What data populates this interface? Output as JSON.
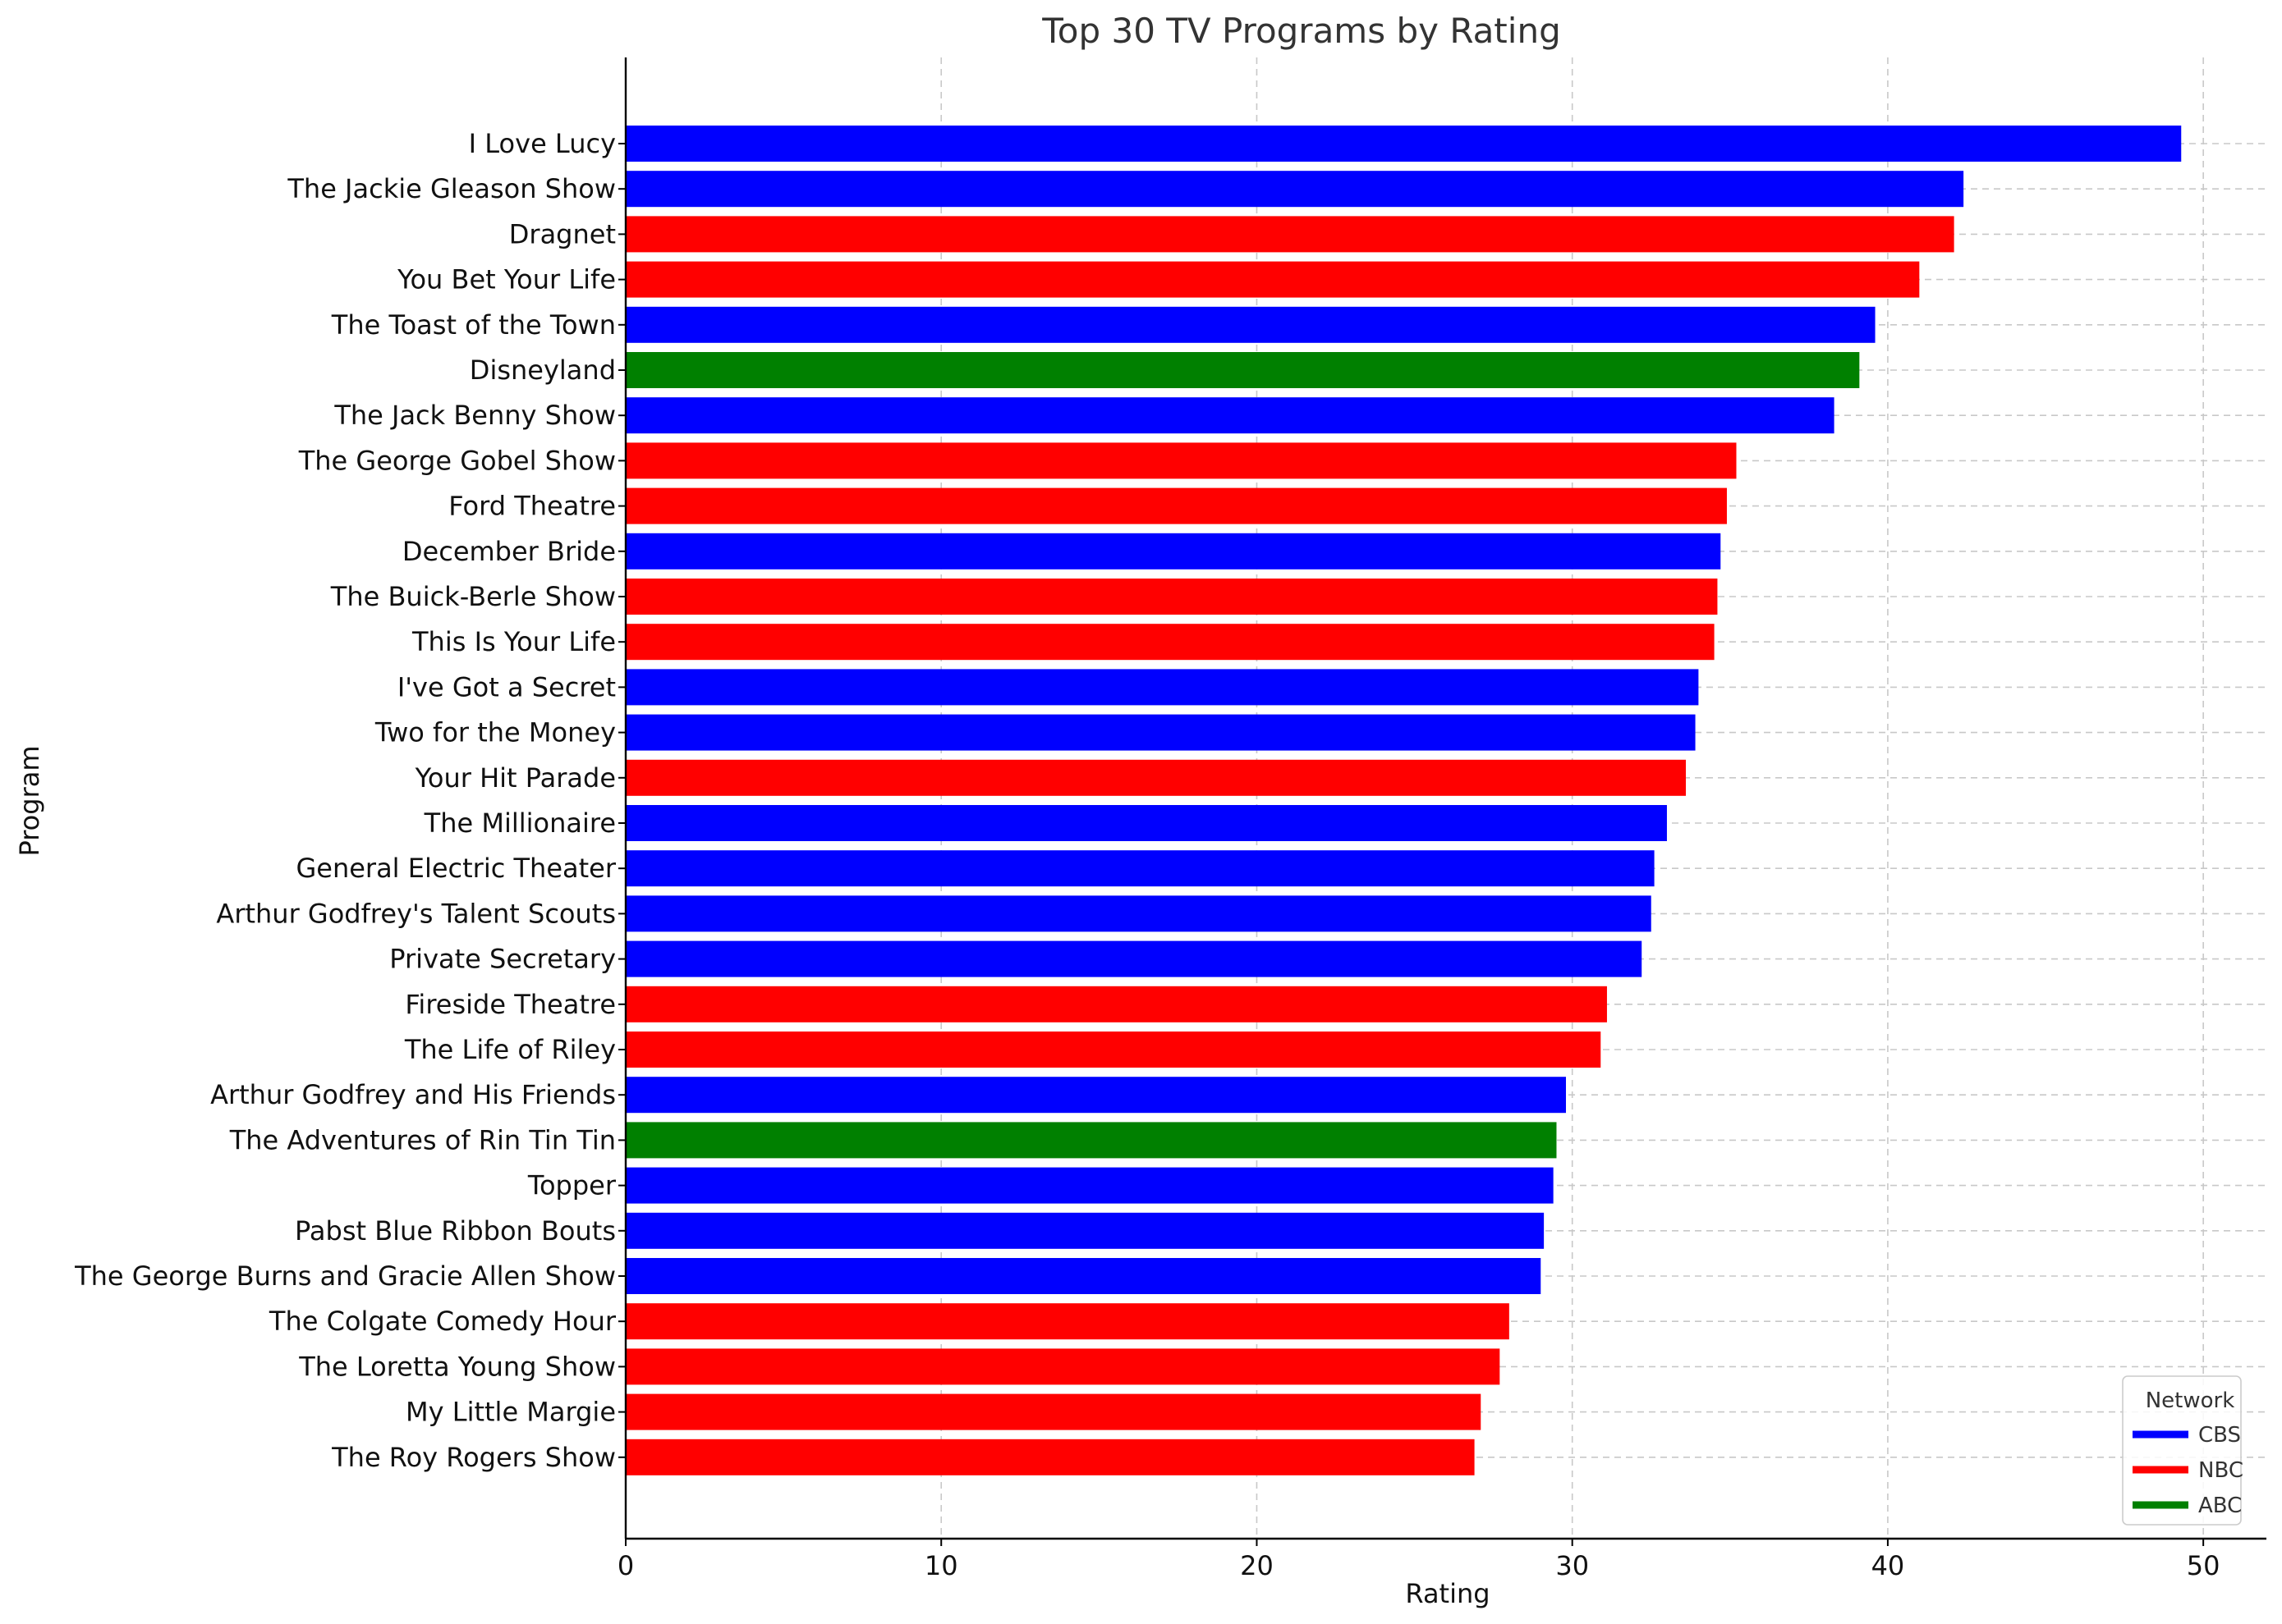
{
  "chart_data": {
    "type": "bar",
    "orientation": "horizontal",
    "title": "Top 30 TV Programs by Rating",
    "xlabel": "Rating",
    "ylabel": "Program",
    "xlim": [
      0,
      52
    ],
    "xticks": [
      0,
      10,
      20,
      30,
      40,
      50
    ],
    "grid": true,
    "legend": {
      "title": "Network",
      "placement": "lower-right",
      "entries": [
        {
          "name": "CBS",
          "color": "#0000ff"
        },
        {
          "name": "NBC",
          "color": "#ff0000"
        },
        {
          "name": "ABC",
          "color": "#008000"
        }
      ]
    },
    "categories": [
      "I Love Lucy",
      "The Jackie Gleason Show",
      "Dragnet",
      "You Bet Your Life",
      "The Toast of the Town",
      "Disneyland",
      "The Jack Benny Show",
      "The George Gobel Show",
      "Ford Theatre",
      "December Bride",
      "The Buick-Berle Show",
      "This Is Your Life",
      "I've Got a Secret",
      "Two for the Money",
      "Your Hit Parade",
      "The Millionaire",
      "General Electric Theater",
      "Arthur Godfrey's Talent Scouts",
      "Private Secretary",
      "Fireside Theatre",
      "The Life of Riley",
      "Arthur Godfrey and His Friends",
      "The Adventures of Rin Tin Tin",
      "Topper",
      "Pabst Blue Ribbon Bouts",
      "The George Burns and Gracie Allen Show",
      "The Colgate Comedy Hour",
      "The Loretta Young Show",
      "My Little Margie",
      "The Roy Rogers Show"
    ],
    "values": [
      49.3,
      42.4,
      42.1,
      41.0,
      39.6,
      39.1,
      38.3,
      35.2,
      34.9,
      34.7,
      34.6,
      34.5,
      34.0,
      33.9,
      33.6,
      33.0,
      32.6,
      32.5,
      32.2,
      31.1,
      30.9,
      29.8,
      29.5,
      29.4,
      29.1,
      29.0,
      28.0,
      27.7,
      27.1,
      26.9
    ],
    "networks": [
      "CBS",
      "CBS",
      "NBC",
      "NBC",
      "CBS",
      "ABC",
      "CBS",
      "NBC",
      "NBC",
      "CBS",
      "NBC",
      "NBC",
      "CBS",
      "CBS",
      "NBC",
      "CBS",
      "CBS",
      "CBS",
      "CBS",
      "NBC",
      "NBC",
      "CBS",
      "ABC",
      "CBS",
      "CBS",
      "CBS",
      "NBC",
      "NBC",
      "NBC",
      "NBC"
    ]
  }
}
